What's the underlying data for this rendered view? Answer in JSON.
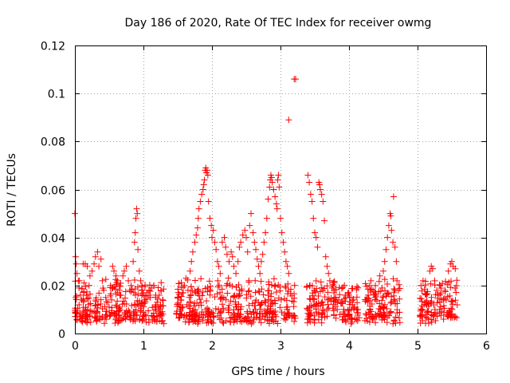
{
  "chart_data": {
    "type": "scatter",
    "title": "Day 186 of 2020, Rate Of TEC Index for receiver owmg",
    "xlabel": "GPS time / hours",
    "ylabel": "ROTI / TECUs",
    "xlim": [
      0,
      6
    ],
    "ylim": [
      0,
      0.12
    ],
    "xticks": [
      0,
      1,
      2,
      3,
      4,
      5,
      6
    ],
    "yticks": [
      0,
      0.02,
      0.04,
      0.06,
      0.08,
      0.1,
      0.12
    ],
    "xtick_labels": [
      "0",
      "1",
      "2",
      "3",
      "4",
      "5",
      "6"
    ],
    "ytick_labels": [
      "0",
      "0.02",
      "0.04",
      "0.06",
      "0.08",
      "0.1",
      "0.12"
    ],
    "grid": true,
    "marker": "+",
    "color": "#ff0000",
    "series": [
      {
        "name": "ROTI",
        "points": [
          [
            0.0,
            0.05
          ],
          [
            0.01,
            0.032
          ],
          [
            0.02,
            0.029
          ],
          [
            0.03,
            0.025
          ],
          [
            0.05,
            0.022
          ],
          [
            0.06,
            0.019
          ],
          [
            0.08,
            0.016
          ],
          [
            0.1,
            0.014
          ],
          [
            0.12,
            0.029
          ],
          [
            0.15,
            0.029
          ],
          [
            0.18,
            0.028
          ],
          [
            0.2,
            0.012
          ],
          [
            0.22,
            0.024
          ],
          [
            0.25,
            0.026
          ],
          [
            0.28,
            0.029
          ],
          [
            0.3,
            0.032
          ],
          [
            0.33,
            0.034
          ],
          [
            0.35,
            0.028
          ],
          [
            0.38,
            0.031
          ],
          [
            0.4,
            0.022
          ],
          [
            0.42,
            0.018
          ],
          [
            0.45,
            0.015
          ],
          [
            0.48,
            0.013
          ],
          [
            0.5,
            0.011
          ],
          [
            0.52,
            0.02
          ],
          [
            0.55,
            0.028
          ],
          [
            0.57,
            0.026
          ],
          [
            0.6,
            0.024
          ],
          [
            0.62,
            0.022
          ],
          [
            0.65,
            0.018
          ],
          [
            0.67,
            0.016
          ],
          [
            0.7,
            0.024
          ],
          [
            0.72,
            0.026
          ],
          [
            0.75,
            0.028
          ],
          [
            0.78,
            0.022
          ],
          [
            0.8,
            0.018
          ],
          [
            0.82,
            0.02
          ],
          [
            0.85,
            0.03
          ],
          [
            0.87,
            0.038
          ],
          [
            0.88,
            0.042
          ],
          [
            0.89,
            0.048
          ],
          [
            0.9,
            0.052
          ],
          [
            0.91,
            0.05
          ],
          [
            0.92,
            0.035
          ],
          [
            0.94,
            0.026
          ],
          [
            0.96,
            0.022
          ],
          [
            0.98,
            0.018
          ],
          [
            1.0,
            0.016
          ],
          [
            1.02,
            0.014
          ],
          [
            1.05,
            0.017
          ],
          [
            1.08,
            0.018
          ],
          [
            1.1,
            0.015
          ],
          [
            1.12,
            0.019
          ],
          [
            1.15,
            0.02
          ],
          [
            1.18,
            0.016
          ],
          [
            1.2,
            0.013
          ],
          [
            1.22,
            0.011
          ],
          [
            1.25,
            0.012
          ],
          [
            1.28,
            0.014
          ],
          [
            1.5,
            0.015
          ],
          [
            1.52,
            0.012
          ],
          [
            1.55,
            0.014
          ],
          [
            1.58,
            0.017
          ],
          [
            1.6,
            0.02
          ],
          [
            1.62,
            0.023
          ],
          [
            1.65,
            0.018
          ],
          [
            1.68,
            0.026
          ],
          [
            1.7,
            0.03
          ],
          [
            1.72,
            0.034
          ],
          [
            1.75,
            0.038
          ],
          [
            1.77,
            0.041
          ],
          [
            1.79,
            0.044
          ],
          [
            1.8,
            0.048
          ],
          [
            1.81,
            0.052
          ],
          [
            1.83,
            0.055
          ],
          [
            1.85,
            0.058
          ],
          [
            1.87,
            0.06
          ],
          [
            1.88,
            0.062
          ],
          [
            1.89,
            0.064
          ],
          [
            1.9,
            0.068
          ],
          [
            1.91,
            0.069
          ],
          [
            1.92,
            0.067
          ],
          [
            1.93,
            0.068
          ],
          [
            1.94,
            0.066
          ],
          [
            1.95,
            0.055
          ],
          [
            1.97,
            0.048
          ],
          [
            1.99,
            0.045
          ],
          [
            2.0,
            0.04
          ],
          [
            2.02,
            0.043
          ],
          [
            2.04,
            0.038
          ],
          [
            2.06,
            0.035
          ],
          [
            2.08,
            0.03
          ],
          [
            2.1,
            0.028
          ],
          [
            2.12,
            0.025
          ],
          [
            2.15,
            0.038
          ],
          [
            2.18,
            0.04
          ],
          [
            2.2,
            0.036
          ],
          [
            2.22,
            0.033
          ],
          [
            2.25,
            0.03
          ],
          [
            2.28,
            0.034
          ],
          [
            2.3,
            0.032
          ],
          [
            2.32,
            0.028
          ],
          [
            2.35,
            0.025
          ],
          [
            2.38,
            0.03
          ],
          [
            2.4,
            0.036
          ],
          [
            2.42,
            0.038
          ],
          [
            2.45,
            0.041
          ],
          [
            2.48,
            0.043
          ],
          [
            2.5,
            0.04
          ],
          [
            2.52,
            0.034
          ],
          [
            2.55,
            0.045
          ],
          [
            2.57,
            0.05
          ],
          [
            2.6,
            0.042
          ],
          [
            2.62,
            0.038
          ],
          [
            2.64,
            0.035
          ],
          [
            2.66,
            0.031
          ],
          [
            2.68,
            0.028
          ],
          [
            2.7,
            0.025
          ],
          [
            2.72,
            0.03
          ],
          [
            2.74,
            0.033
          ],
          [
            2.76,
            0.038
          ],
          [
            2.78,
            0.042
          ],
          [
            2.8,
            0.048
          ],
          [
            2.82,
            0.056
          ],
          [
            2.84,
            0.061
          ],
          [
            2.85,
            0.064
          ],
          [
            2.86,
            0.066
          ],
          [
            2.87,
            0.065
          ],
          [
            2.88,
            0.063
          ],
          [
            2.9,
            0.06
          ],
          [
            2.92,
            0.057
          ],
          [
            2.94,
            0.054
          ],
          [
            2.95,
            0.052
          ],
          [
            2.96,
            0.064
          ],
          [
            2.97,
            0.066
          ],
          [
            2.98,
            0.061
          ],
          [
            3.0,
            0.048
          ],
          [
            3.02,
            0.042
          ],
          [
            3.04,
            0.038
          ],
          [
            3.06,
            0.034
          ],
          [
            3.08,
            0.03
          ],
          [
            3.1,
            0.028
          ],
          [
            3.12,
            0.025
          ],
          [
            3.12,
            0.089
          ],
          [
            3.2,
            0.106
          ],
          [
            3.22,
            0.106
          ],
          [
            3.4,
            0.066
          ],
          [
            3.42,
            0.063
          ],
          [
            3.44,
            0.058
          ],
          [
            3.46,
            0.055
          ],
          [
            3.48,
            0.048
          ],
          [
            3.5,
            0.042
          ],
          [
            3.52,
            0.04
          ],
          [
            3.54,
            0.036
          ],
          [
            3.56,
            0.063
          ],
          [
            3.57,
            0.062
          ],
          [
            3.58,
            0.06
          ],
          [
            3.6,
            0.058
          ],
          [
            3.62,
            0.055
          ],
          [
            3.64,
            0.047
          ],
          [
            3.66,
            0.032
          ],
          [
            3.68,
            0.028
          ],
          [
            3.7,
            0.025
          ],
          [
            3.72,
            0.022
          ],
          [
            3.75,
            0.019
          ],
          [
            3.78,
            0.017
          ],
          [
            3.8,
            0.015
          ],
          [
            3.85,
            0.014
          ],
          [
            3.9,
            0.013
          ],
          [
            3.95,
            0.015
          ],
          [
            4.0,
            0.016
          ],
          [
            4.02,
            0.013
          ],
          [
            4.05,
            0.012
          ],
          [
            4.08,
            0.011
          ],
          [
            4.12,
            0.01
          ],
          [
            4.25,
            0.014
          ],
          [
            4.28,
            0.016
          ],
          [
            4.3,
            0.02
          ],
          [
            4.32,
            0.022
          ],
          [
            4.35,
            0.018
          ],
          [
            4.38,
            0.015
          ],
          [
            4.45,
            0.024
          ],
          [
            4.5,
            0.026
          ],
          [
            4.52,
            0.03
          ],
          [
            4.54,
            0.035
          ],
          [
            4.56,
            0.04
          ],
          [
            4.58,
            0.045
          ],
          [
            4.6,
            0.05
          ],
          [
            4.61,
            0.049
          ],
          [
            4.62,
            0.043
          ],
          [
            4.64,
            0.038
          ],
          [
            4.65,
            0.057
          ],
          [
            4.67,
            0.036
          ],
          [
            4.69,
            0.03
          ],
          [
            4.7,
            0.022
          ],
          [
            4.72,
            0.018
          ],
          [
            5.05,
            0.02
          ],
          [
            5.08,
            0.022
          ],
          [
            5.18,
            0.026
          ],
          [
            5.2,
            0.028
          ],
          [
            5.22,
            0.027
          ],
          [
            5.25,
            0.022
          ],
          [
            5.28,
            0.018
          ],
          [
            5.3,
            0.016
          ],
          [
            5.35,
            0.014
          ],
          [
            5.4,
            0.018
          ],
          [
            5.45,
            0.026
          ],
          [
            5.48,
            0.029
          ],
          [
            5.5,
            0.03
          ],
          [
            5.52,
            0.028
          ],
          [
            5.55,
            0.027
          ]
        ]
      }
    ]
  }
}
